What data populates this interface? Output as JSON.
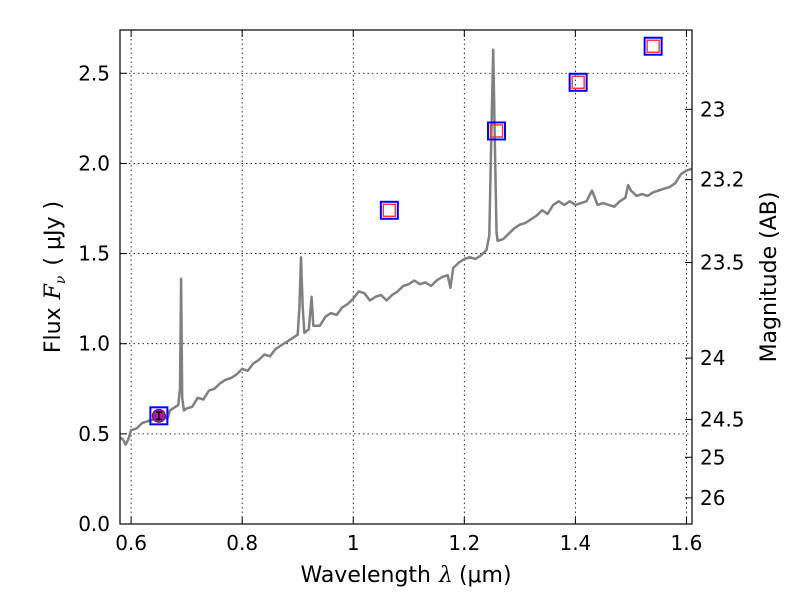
{
  "chart_data": {
    "type": "line",
    "xlabel_text": "Wavelength",
    "xlabel_symbol": "λ",
    "xlabel_unit": "(μm)",
    "ylabel_text": "Flux",
    "ylabel_symbol": "F",
    "ylabel_sub": "ν",
    "ylabel_unit": "( μJy )",
    "y2label": "Magnitude (AB)",
    "xlim": [
      0.58,
      1.61
    ],
    "ylim": [
      0.0,
      2.74
    ],
    "xticks": [
      {
        "value": 0.6,
        "label": "0.6"
      },
      {
        "value": 0.8,
        "label": "0.8"
      },
      {
        "value": 1.0,
        "label": "1"
      },
      {
        "value": 1.2,
        "label": "1.2"
      },
      {
        "value": 1.4,
        "label": "1.4"
      },
      {
        "value": 1.6,
        "label": "1.6"
      }
    ],
    "yticks": [
      {
        "value": 0.0,
        "label": "0.0"
      },
      {
        "value": 0.5,
        "label": "0.5"
      },
      {
        "value": 1.0,
        "label": "1.0"
      },
      {
        "value": 1.5,
        "label": "1.5"
      },
      {
        "value": 2.0,
        "label": "2.0"
      },
      {
        "value": 2.5,
        "label": "2.5"
      }
    ],
    "y2ticks": [
      {
        "label": "23",
        "flux": 2.3
      },
      {
        "label": "23.2",
        "flux": 1.91
      },
      {
        "label": "23.5",
        "flux": 1.45
      },
      {
        "label": "24",
        "flux": 0.92
      },
      {
        "label": "24.5",
        "flux": 0.58
      },
      {
        "label": "25",
        "flux": 0.37
      },
      {
        "label": "26",
        "flux": 0.145
      }
    ],
    "grid": true,
    "series": [
      {
        "type": "line",
        "color": "#808080",
        "points": [
          [
            0.58,
            0.48
          ],
          [
            0.585,
            0.47
          ],
          [
            0.59,
            0.44
          ],
          [
            0.595,
            0.47
          ],
          [
            0.6,
            0.52
          ],
          [
            0.61,
            0.53
          ],
          [
            0.62,
            0.56
          ],
          [
            0.63,
            0.57
          ],
          [
            0.64,
            0.58
          ],
          [
            0.65,
            0.59
          ],
          [
            0.66,
            0.6
          ],
          [
            0.665,
            0.58
          ],
          [
            0.67,
            0.63
          ],
          [
            0.68,
            0.65
          ],
          [
            0.685,
            0.66
          ],
          [
            0.688,
            0.75
          ],
          [
            0.69,
            1.36
          ],
          [
            0.692,
            0.7
          ],
          [
            0.695,
            0.63
          ],
          [
            0.7,
            0.64
          ],
          [
            0.71,
            0.65
          ],
          [
            0.72,
            0.7
          ],
          [
            0.73,
            0.69
          ],
          [
            0.74,
            0.74
          ],
          [
            0.75,
            0.75
          ],
          [
            0.76,
            0.78
          ],
          [
            0.77,
            0.8
          ],
          [
            0.78,
            0.81
          ],
          [
            0.79,
            0.83
          ],
          [
            0.8,
            0.86
          ],
          [
            0.81,
            0.85
          ],
          [
            0.82,
            0.89
          ],
          [
            0.83,
            0.91
          ],
          [
            0.84,
            0.94
          ],
          [
            0.85,
            0.93
          ],
          [
            0.86,
            0.97
          ],
          [
            0.87,
            0.99
          ],
          [
            0.88,
            1.01
          ],
          [
            0.89,
            1.03
          ],
          [
            0.9,
            1.05
          ],
          [
            0.903,
            1.2
          ],
          [
            0.906,
            1.48
          ],
          [
            0.909,
            1.2
          ],
          [
            0.912,
            1.06
          ],
          [
            0.92,
            1.08
          ],
          [
            0.925,
            1.26
          ],
          [
            0.928,
            1.1
          ],
          [
            0.94,
            1.1
          ],
          [
            0.95,
            1.15
          ],
          [
            0.96,
            1.17
          ],
          [
            0.97,
            1.16
          ],
          [
            0.98,
            1.2
          ],
          [
            0.99,
            1.22
          ],
          [
            1.0,
            1.25
          ],
          [
            1.01,
            1.29
          ],
          [
            1.02,
            1.28
          ],
          [
            1.03,
            1.24
          ],
          [
            1.04,
            1.26
          ],
          [
            1.05,
            1.27
          ],
          [
            1.06,
            1.24
          ],
          [
            1.07,
            1.27
          ],
          [
            1.08,
            1.29
          ],
          [
            1.09,
            1.32
          ],
          [
            1.1,
            1.33
          ],
          [
            1.11,
            1.35
          ],
          [
            1.12,
            1.33
          ],
          [
            1.13,
            1.34
          ],
          [
            1.14,
            1.32
          ],
          [
            1.15,
            1.35
          ],
          [
            1.16,
            1.37
          ],
          [
            1.17,
            1.38
          ],
          [
            1.175,
            1.31
          ],
          [
            1.18,
            1.42
          ],
          [
            1.19,
            1.45
          ],
          [
            1.2,
            1.47
          ],
          [
            1.21,
            1.48
          ],
          [
            1.22,
            1.47
          ],
          [
            1.23,
            1.49
          ],
          [
            1.24,
            1.52
          ],
          [
            1.245,
            1.6
          ],
          [
            1.249,
            2.2
          ],
          [
            1.252,
            2.63
          ],
          [
            1.255,
            2.1
          ],
          [
            1.258,
            1.62
          ],
          [
            1.26,
            1.57
          ],
          [
            1.27,
            1.58
          ],
          [
            1.28,
            1.61
          ],
          [
            1.29,
            1.64
          ],
          [
            1.3,
            1.66
          ],
          [
            1.31,
            1.67
          ],
          [
            1.32,
            1.69
          ],
          [
            1.33,
            1.71
          ],
          [
            1.34,
            1.74
          ],
          [
            1.35,
            1.72
          ],
          [
            1.36,
            1.77
          ],
          [
            1.37,
            1.79
          ],
          [
            1.38,
            1.77
          ],
          [
            1.39,
            1.79
          ],
          [
            1.4,
            1.77
          ],
          [
            1.41,
            1.78
          ],
          [
            1.42,
            1.79
          ],
          [
            1.43,
            1.85
          ],
          [
            1.44,
            1.77
          ],
          [
            1.45,
            1.78
          ],
          [
            1.46,
            1.77
          ],
          [
            1.47,
            1.76
          ],
          [
            1.48,
            1.79
          ],
          [
            1.49,
            1.81
          ],
          [
            1.495,
            1.88
          ],
          [
            1.5,
            1.85
          ],
          [
            1.51,
            1.82
          ],
          [
            1.52,
            1.83
          ],
          [
            1.53,
            1.82
          ],
          [
            1.54,
            1.84
          ],
          [
            1.55,
            1.85
          ],
          [
            1.56,
            1.86
          ],
          [
            1.57,
            1.87
          ],
          [
            1.58,
            1.89
          ],
          [
            1.59,
            1.94
          ],
          [
            1.6,
            1.96
          ],
          [
            1.61,
            1.97
          ]
        ]
      },
      {
        "type": "open-square-markers",
        "name": "blue-squares",
        "color": "#0000ff",
        "points": [
          [
            0.65,
            0.6
          ],
          [
            1.065,
            1.74
          ],
          [
            1.258,
            2.18
          ],
          [
            1.405,
            2.45
          ],
          [
            1.54,
            2.65
          ]
        ]
      },
      {
        "type": "open-square-markers",
        "name": "red-squares",
        "color": "#ff3030",
        "points": [
          [
            1.065,
            1.74
          ],
          [
            1.258,
            2.18
          ],
          [
            1.405,
            2.45
          ],
          [
            1.54,
            2.65
          ]
        ]
      },
      {
        "type": "errorbar-point",
        "name": "purple-point",
        "color": "#a020a0",
        "points": [
          [
            0.65,
            0.6
          ]
        ],
        "error": 0.02
      }
    ]
  }
}
